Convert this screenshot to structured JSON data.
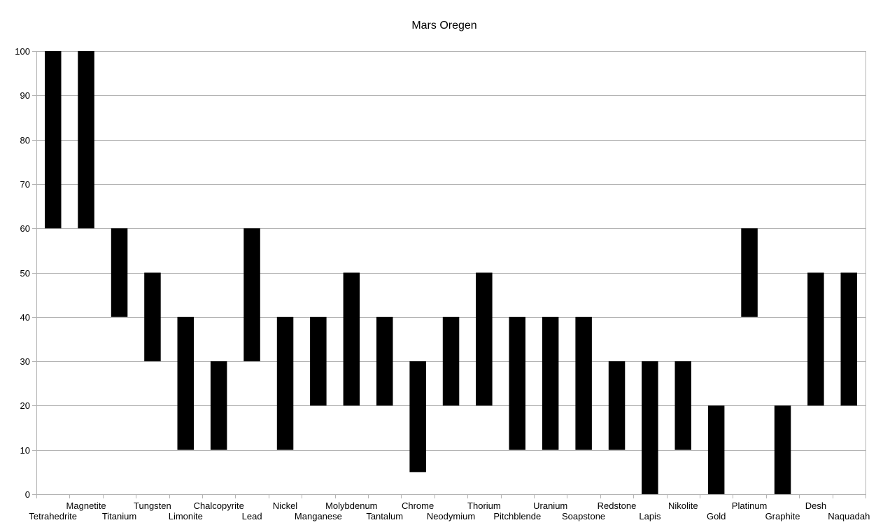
{
  "chart_data": {
    "type": "bar",
    "subtype": "floating-range",
    "title": "Mars Oregen",
    "xlabel": "",
    "ylabel": "",
    "ylim": [
      0,
      100
    ],
    "yticks": [
      0,
      10,
      20,
      30,
      40,
      50,
      60,
      70,
      80,
      90,
      100
    ],
    "grid": true,
    "legend": "none",
    "bar_color": "#000000",
    "grid_color": "#b3b3b3",
    "categories": [
      "Tetrahedrite",
      "Magnetite",
      "Titanium",
      "Tungsten",
      "Limonite",
      "Chalcopyrite",
      "Lead",
      "Nickel",
      "Manganese",
      "Molybdenum",
      "Tantalum",
      "Chrome",
      "Neodymium",
      "Thorium",
      "Pitchblende",
      "Uranium",
      "Soapstone",
      "Redstone",
      "Lapis",
      "Nikolite",
      "Gold",
      "Platinum",
      "Graphite",
      "Desh",
      "Naquadah"
    ],
    "series": [
      {
        "values": [
          [
            60,
            100
          ],
          [
            60,
            100
          ],
          [
            40,
            60
          ],
          [
            30,
            50
          ],
          [
            10,
            40
          ],
          [
            10,
            30
          ],
          [
            30,
            60
          ],
          [
            10,
            40
          ],
          [
            20,
            40
          ],
          [
            20,
            50
          ],
          [
            20,
            40
          ],
          [
            5,
            30
          ],
          [
            20,
            40
          ],
          [
            20,
            50
          ],
          [
            10,
            40
          ],
          [
            10,
            40
          ],
          [
            10,
            40
          ],
          [
            10,
            30
          ],
          [
            0,
            30
          ],
          [
            10,
            30
          ],
          [
            0,
            20
          ],
          [
            40,
            60
          ],
          [
            0,
            20
          ],
          [
            20,
            50
          ],
          [
            20,
            50
          ]
        ]
      }
    ]
  }
}
